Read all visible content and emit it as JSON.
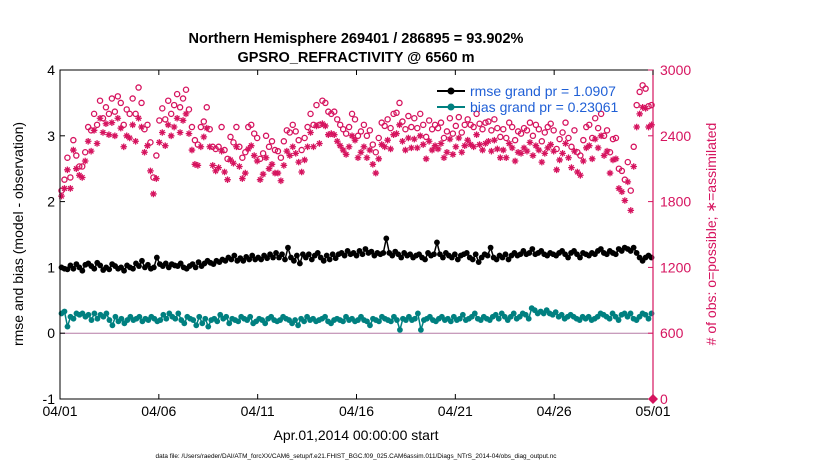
{
  "chart_data": {
    "type": "line",
    "title_line1": "Northern Hemisphere 269401 / 286895 = 93.902%",
    "title_line2": "GPSRO_REFRACTIVITY @ 6560 m",
    "xlabel": "Apr.01,2014 00:00:00 start",
    "ylabel_left": "rmse and bias (model - observation)",
    "ylabel_right": "# of obs: o=possible; ∗=assimilated",
    "footnote": "data file: /Users/raeder/DAI/ATM_forcXX/CAM6_setup/f.e21.FHIST_BGC.f09_025.CAM6assim.011/Diags_NTrS_2014-04/obs_diag_output.nc",
    "xlim": [
      0,
      30
    ],
    "x_ticks": [
      0,
      5,
      10,
      15,
      20,
      25,
      30
    ],
    "x_tick_labels": [
      "04/01",
      "04/06",
      "04/11",
      "04/16",
      "04/21",
      "04/26",
      "05/01"
    ],
    "ylim_left": [
      -1,
      4
    ],
    "y_ticks_left": [
      -1,
      0,
      1,
      2,
      3,
      4
    ],
    "y_tick_labels_left": [
      "-1",
      "0",
      "1",
      "2",
      "3",
      "4"
    ],
    "ylim_right": [
      0,
      3000
    ],
    "y_ticks_right": [
      0,
      600,
      1200,
      1800,
      2400,
      3000
    ],
    "y_tick_labels_right": [
      "0",
      "600",
      "1200",
      "1800",
      "2400",
      "3000"
    ],
    "zero_line": 0,
    "legend": {
      "position": "top-right",
      "entries": [
        {
          "label": "rmse grand pr = 1.0907",
          "color": "#000000"
        },
        {
          "label": "bias grand pr = 0.23061",
          "color": "#008080"
        }
      ]
    },
    "colors": {
      "rmse": "#000000",
      "bias": "#008080",
      "nobs": "#d6145f",
      "axis": "#000000"
    },
    "series": [
      {
        "name": "rmse",
        "axis": "left",
        "values": [
          1.0,
          0.98,
          0.97,
          1.03,
          0.98,
          1.05,
          1.0,
          0.95,
          1.04,
          1.06,
          1.02,
          0.98,
          1.07,
          1.03,
          0.96,
          1.0,
          0.97,
          1.05,
          1.02,
          0.98,
          1.0,
          0.95,
          1.03,
          1.0,
          0.98,
          1.06,
          1.02,
          1.1,
          1.0,
          1.04,
          0.98,
          1.0,
          1.15,
          1.05,
          1.02,
          1.06,
          1.0,
          1.05,
          1.03,
          1.02,
          1.06,
          1.0,
          0.98,
          1.02,
          1.05,
          1.0,
          1.08,
          1.02,
          1.06,
          1.1,
          1.07,
          1.05,
          1.1,
          1.08,
          1.12,
          1.1,
          1.15,
          1.12,
          1.18,
          1.1,
          1.14,
          1.1,
          1.16,
          1.12,
          1.18,
          1.12,
          1.15,
          1.12,
          1.18,
          1.14,
          1.2,
          1.15,
          1.22,
          1.15,
          1.2,
          1.12,
          1.3,
          1.15,
          1.1,
          1.18,
          1.06,
          1.2,
          1.15,
          1.2,
          1.12,
          1.18,
          1.22,
          1.15,
          1.1,
          1.18,
          1.12,
          1.2,
          1.14,
          1.2,
          1.22,
          1.18,
          1.25,
          1.2,
          1.22,
          1.18,
          1.25,
          1.2,
          1.28,
          1.22,
          1.24,
          1.18,
          1.22,
          1.2,
          1.22,
          1.44,
          1.22,
          1.18,
          1.24,
          1.2,
          1.15,
          1.22,
          1.18,
          1.2,
          1.15,
          1.18,
          1.2,
          1.15,
          1.12,
          1.22,
          1.18,
          1.2,
          1.38,
          1.2,
          1.15,
          1.22,
          1.18,
          1.15,
          1.2,
          1.12,
          1.18,
          1.2,
          1.22,
          1.15,
          1.12,
          1.2,
          1.08,
          1.15,
          1.2,
          1.18,
          1.3,
          1.15,
          1.12,
          1.18,
          1.15,
          1.2,
          1.12,
          1.18,
          1.22,
          1.18,
          1.2,
          1.25,
          1.2,
          1.22,
          1.28,
          1.2,
          1.22,
          1.25,
          1.2,
          1.18,
          1.22,
          1.2,
          1.18,
          1.22,
          1.25,
          1.2,
          1.15,
          1.22,
          1.25,
          1.2,
          1.15,
          1.22,
          1.2,
          1.18,
          1.22,
          1.2,
          1.25,
          1.28,
          1.22,
          1.2,
          1.25,
          1.22,
          1.2,
          1.28,
          1.25,
          1.3,
          1.28,
          1.25,
          1.3,
          1.22,
          1.15,
          1.1,
          1.15,
          1.18,
          1.15
        ]
      },
      {
        "name": "bias",
        "axis": "left",
        "values": [
          0.3,
          0.33,
          0.1,
          0.25,
          0.22,
          0.3,
          0.28,
          0.3,
          0.25,
          0.28,
          0.2,
          0.3,
          0.22,
          0.28,
          0.25,
          0.3,
          0.2,
          0.12,
          0.25,
          0.18,
          0.22,
          0.15,
          0.2,
          0.25,
          0.2,
          0.22,
          0.25,
          0.18,
          0.22,
          0.2,
          0.25,
          0.22,
          0.18,
          0.2,
          0.28,
          0.22,
          0.3,
          0.25,
          0.22,
          0.3,
          0.2,
          0.15,
          0.25,
          0.22,
          0.2,
          0.12,
          0.25,
          0.15,
          0.22,
          0.1,
          0.2,
          0.22,
          0.18,
          0.28,
          0.22,
          0.25,
          0.15,
          0.22,
          0.2,
          0.18,
          0.25,
          0.22,
          0.2,
          0.25,
          0.15,
          0.18,
          0.22,
          0.2,
          0.15,
          0.22,
          0.25,
          0.2,
          0.18,
          0.2,
          0.25,
          0.22,
          0.2,
          0.15,
          0.2,
          0.12,
          0.22,
          0.18,
          0.25,
          0.2,
          0.22,
          0.18,
          0.2,
          0.22,
          0.25,
          0.18,
          0.15,
          0.2,
          0.22,
          0.2,
          0.18,
          0.25,
          0.2,
          0.22,
          0.18,
          0.2,
          0.25,
          0.2,
          0.18,
          0.12,
          0.22,
          0.2,
          0.18,
          0.25,
          0.22,
          0.2,
          0.18,
          0.25,
          0.2,
          0.05,
          0.22,
          0.2,
          0.25,
          0.2,
          0.22,
          0.3,
          0.05,
          0.2,
          0.22,
          0.25,
          0.2,
          0.18,
          0.22,
          0.25,
          0.2,
          0.22,
          0.18,
          0.25,
          0.2,
          0.22,
          0.28,
          0.2,
          0.22,
          0.25,
          0.3,
          0.22,
          0.2,
          0.25,
          0.22,
          0.2,
          0.25,
          0.28,
          0.22,
          0.3,
          0.25,
          0.2,
          0.25,
          0.3,
          0.22,
          0.25,
          0.3,
          0.28,
          0.22,
          0.38,
          0.35,
          0.3,
          0.33,
          0.3,
          0.35,
          0.3,
          0.28,
          0.32,
          0.25,
          0.28,
          0.22,
          0.25,
          0.28,
          0.25,
          0.22,
          0.2,
          0.25,
          0.22,
          0.25,
          0.2,
          0.22,
          0.25,
          0.3,
          0.28,
          0.25,
          0.22,
          0.3,
          0.25,
          0.2,
          0.28,
          0.3,
          0.25,
          0.3,
          0.22,
          0.2,
          0.25,
          0.3,
          0.28,
          0.22,
          0.3
        ]
      },
      {
        "name": "nobs_possible",
        "axis": "right",
        "marker": "circle",
        "values": [
          1900,
          2000,
          2200,
          2020,
          2360,
          2220,
          2120,
          2120,
          2250,
          2480,
          2450,
          2600,
          2500,
          2720,
          2560,
          2660,
          2600,
          2740,
          2620,
          2760,
          2700,
          2500,
          2640,
          2600,
          2740,
          2600,
          2840,
          2700,
          2460,
          2500,
          2340,
          2020,
          2220,
          2540,
          2650,
          2550,
          2720,
          2600,
          2680,
          2780,
          2660,
          2740,
          2820,
          2640,
          2480,
          2360,
          2320,
          2480,
          2530,
          2660,
          2460,
          2300,
          2280,
          2300,
          2480,
          2270,
          2190,
          2390,
          2340,
          2480,
          2300,
          2200,
          2250,
          2480,
          2500,
          2420,
          2380,
          2190,
          2240,
          2400,
          2300,
          2350,
          2270,
          2260,
          2200,
          2350,
          2450,
          2430,
          2500,
          2440,
          2360,
          2270,
          2380,
          2480,
          2600,
          2500,
          2680,
          2500,
          2720,
          2700,
          2620,
          2600,
          2620,
          2550,
          2500,
          2460,
          2420,
          2480,
          2600,
          2550,
          2400,
          2440,
          2500,
          2400,
          2450,
          2320,
          2250,
          2380,
          2520,
          2490,
          2550,
          2470,
          2600,
          2610,
          2700,
          2530,
          2460,
          2580,
          2480,
          2560,
          2470,
          2600,
          2500,
          2390,
          2540,
          2460,
          2500,
          2470,
          2520,
          2380,
          2440,
          2560,
          2420,
          2490,
          2570,
          2430,
          2500,
          2550,
          2500,
          2480,
          2600,
          2510,
          2460,
          2520,
          2530,
          2450,
          2550,
          2470,
          2390,
          2460,
          2380,
          2520,
          2480,
          2360,
          2440,
          2420,
          2470,
          2450,
          2520,
          2400,
          2500,
          2460,
          2350,
          2430,
          2480,
          2510,
          2450,
          2280,
          2370,
          2430,
          2520,
          2380,
          2300,
          2450,
          2250,
          2220,
          2360,
          2480,
          2500,
          2380,
          2560,
          2470,
          2600,
          2400,
          2450,
          2250,
          2370,
          2380,
          2100,
          2080,
          2000,
          2160,
          1900,
          2300,
          2680,
          2800,
          2860,
          2830,
          2670,
          2680
        ]
      },
      {
        "name": "nobs_assimilated",
        "axis": "right",
        "marker": "asterisk",
        "values": [
          1850,
          1920,
          2090,
          1920,
          2270,
          2100,
          2040,
          2020,
          2170,
          2350,
          2260,
          2450,
          2330,
          2560,
          2430,
          2510,
          2410,
          2520,
          2400,
          2560,
          2470,
          2300,
          2400,
          2380,
          2500,
          2350,
          2560,
          2480,
          2250,
          2310,
          2080,
          1870,
          2010,
          2340,
          2430,
          2310,
          2500,
          2400,
          2480,
          2560,
          2430,
          2540,
          2600,
          2420,
          2270,
          2140,
          2130,
          2300,
          2390,
          2470,
          2300,
          2130,
          2080,
          2110,
          2260,
          2070,
          2000,
          2180,
          2150,
          2300,
          2120,
          2010,
          2060,
          2280,
          2310,
          2220,
          2170,
          2000,
          2050,
          2200,
          2100,
          2140,
          2060,
          2060,
          1990,
          2130,
          2260,
          2220,
          2300,
          2240,
          2160,
          2070,
          2180,
          2300,
          2430,
          2300,
          2490,
          2330,
          2510,
          2490,
          2410,
          2420,
          2410,
          2350,
          2310,
          2270,
          2230,
          2300,
          2400,
          2360,
          2200,
          2250,
          2300,
          2200,
          2270,
          2140,
          2060,
          2190,
          2320,
          2300,
          2360,
          2280,
          2410,
          2420,
          2500,
          2350,
          2270,
          2380,
          2290,
          2370,
          2290,
          2400,
          2320,
          2190,
          2350,
          2270,
          2310,
          2280,
          2330,
          2200,
          2250,
          2370,
          2230,
          2300,
          2380,
          2250,
          2310,
          2360,
          2320,
          2300,
          2410,
          2320,
          2270,
          2330,
          2350,
          2260,
          2360,
          2280,
          2200,
          2270,
          2200,
          2330,
          2290,
          2170,
          2250,
          2240,
          2290,
          2260,
          2340,
          2220,
          2310,
          2270,
          2160,
          2240,
          2290,
          2320,
          2260,
          2090,
          2180,
          2240,
          2330,
          2200,
          2110,
          2260,
          2070,
          2040,
          2170,
          2290,
          2310,
          2190,
          2370,
          2290,
          2400,
          2220,
          2260,
          2060,
          2180,
          2190,
          1920,
          1890,
          1810,
          1980,
          1720,
          2120,
          2480,
          2600,
          2660,
          2650,
          2480,
          2500
        ]
      }
    ]
  }
}
